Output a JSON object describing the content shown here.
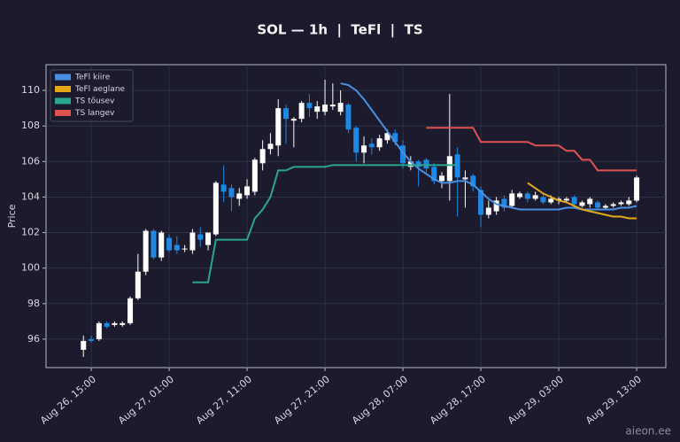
{
  "chart_data": {
    "type": "candlestick",
    "title": "SOL — 1h  |  TeFl  |  TS",
    "ylabel": "Price",
    "watermark": "aieon.ee",
    "categories": [
      null,
      "Aug 26, 15:00",
      null,
      null,
      null,
      null,
      null,
      null,
      null,
      null,
      null,
      "Aug 27, 01:00",
      null,
      null,
      null,
      null,
      null,
      null,
      null,
      null,
      null,
      "Aug 27, 11:00",
      null,
      null,
      null,
      null,
      null,
      null,
      null,
      null,
      null,
      "Aug 27, 21:00",
      null,
      null,
      null,
      null,
      null,
      null,
      null,
      null,
      null,
      "Aug 28, 07:00",
      null,
      null,
      null,
      null,
      null,
      null,
      null,
      null,
      null,
      "Aug 28, 17:00",
      null,
      null,
      null,
      null,
      null,
      null,
      null,
      null,
      null,
      "Aug 29, 03:00",
      null,
      null,
      null,
      null,
      null,
      null,
      null,
      null,
      null,
      "Aug 29, 13:00"
    ],
    "open": [
      95.4,
      96.0,
      96.0,
      96.9,
      96.8,
      96.8,
      96.9,
      98.3,
      99.8,
      102.1,
      100.6,
      101.7,
      101.3,
      101.1,
      101.0,
      101.9,
      101.3,
      101.9,
      104.7,
      104.5,
      103.9,
      104.1,
      104.3,
      105.9,
      106.7,
      106.9,
      109.0,
      108.3,
      108.4,
      109.3,
      108.8,
      108.8,
      109.1,
      108.8,
      109.2,
      107.9,
      106.5,
      107.0,
      106.8,
      107.2,
      107.6,
      106.9,
      105.7,
      106.0,
      106.1,
      105.7,
      104.9,
      104.9,
      106.4,
      105.0,
      105.2,
      104.4,
      103.0,
      103.2,
      103.9,
      103.5,
      104.0,
      104.2,
      103.9,
      104.0,
      103.7,
      103.8,
      103.8,
      104.0,
      103.5,
      103.6,
      103.7,
      103.4,
      103.5,
      103.6,
      103.6,
      103.8
    ],
    "high": [
      96.2,
      96.2,
      97.0,
      97.0,
      97.0,
      97.0,
      98.4,
      100.8,
      102.2,
      102.2,
      102.1,
      101.9,
      101.8,
      101.3,
      102.2,
      102.3,
      102.0,
      104.9,
      105.8,
      104.7,
      104.5,
      105.0,
      106.2,
      107.2,
      107.6,
      109.5,
      109.2,
      108.5,
      109.4,
      109.8,
      109.4,
      110.6,
      110.4,
      110.0,
      109.3,
      108.0,
      107.4,
      107.3,
      107.5,
      107.8,
      107.8,
      107.2,
      106.3,
      106.1,
      106.2,
      105.9,
      105.4,
      109.8,
      106.8,
      105.5,
      105.3,
      104.6,
      103.8,
      104.0,
      104.1,
      104.4,
      104.3,
      104.3,
      104.3,
      104.2,
      104.1,
      104.0,
      104.0,
      104.1,
      103.8,
      104.0,
      103.8,
      103.6,
      103.7,
      103.8,
      104.0,
      105.2
    ],
    "low": [
      95.0,
      95.8,
      95.9,
      96.6,
      96.7,
      96.7,
      96.8,
      98.2,
      99.6,
      100.5,
      100.4,
      100.9,
      100.8,
      100.9,
      100.8,
      101.2,
      101.0,
      101.8,
      103.7,
      103.2,
      103.5,
      103.9,
      104.1,
      105.5,
      106.4,
      106.3,
      107.0,
      106.8,
      108.2,
      108.5,
      108.4,
      108.6,
      108.9,
      108.6,
      107.6,
      106.0,
      105.9,
      106.4,
      106.6,
      107.0,
      106.9,
      105.6,
      105.5,
      104.6,
      105.4,
      104.7,
      104.5,
      103.8,
      102.9,
      103.4,
      104.3,
      102.3,
      102.8,
      103.0,
      103.2,
      103.4,
      103.9,
      103.7,
      103.8,
      103.6,
      103.6,
      103.6,
      103.7,
      103.5,
      103.4,
      103.4,
      103.3,
      103.3,
      103.4,
      103.5,
      103.5,
      103.7
    ],
    "close": [
      95.9,
      95.9,
      96.9,
      96.7,
      96.9,
      96.9,
      98.3,
      99.8,
      102.1,
      100.6,
      102.0,
      101.0,
      101.0,
      101.1,
      102.0,
      101.6,
      102.0,
      104.8,
      104.3,
      104.0,
      104.2,
      104.6,
      106.1,
      106.7,
      107.0,
      109.0,
      108.4,
      108.4,
      109.3,
      109.0,
      109.1,
      109.2,
      109.2,
      109.3,
      107.8,
      106.5,
      106.9,
      106.8,
      107.3,
      107.6,
      107.1,
      105.9,
      106.0,
      105.7,
      105.6,
      104.9,
      105.2,
      106.3,
      105.1,
      105.1,
      104.6,
      103.0,
      103.4,
      103.8,
      103.4,
      104.2,
      104.2,
      103.9,
      104.1,
      103.7,
      103.9,
      103.9,
      103.9,
      103.6,
      103.7,
      103.9,
      103.4,
      103.5,
      103.6,
      103.7,
      103.8,
      105.1
    ],
    "up_color": "#ffffff",
    "down_color": "#1e88e5",
    "series": [
      {
        "name": "TeFl kiire",
        "color": "#4a90e2",
        "values": [
          null,
          null,
          null,
          null,
          null,
          null,
          null,
          null,
          null,
          null,
          null,
          null,
          null,
          null,
          null,
          null,
          null,
          null,
          null,
          null,
          null,
          null,
          null,
          null,
          null,
          null,
          null,
          null,
          null,
          null,
          null,
          null,
          null,
          110.4,
          110.3,
          110.0,
          109.5,
          108.9,
          108.3,
          107.7,
          107.1,
          106.5,
          106.0,
          105.6,
          105.3,
          105.0,
          104.8,
          104.8,
          104.9,
          104.9,
          104.7,
          104.3,
          103.9,
          103.6,
          103.5,
          103.4,
          103.3,
          103.3,
          103.3,
          103.3,
          103.3,
          103.3,
          103.4,
          103.4,
          103.3,
          103.3,
          103.3,
          103.3,
          103.3,
          103.4,
          103.4,
          103.5
        ]
      },
      {
        "name": "TeFl aeglane",
        "color": "#e6a817",
        "values": [
          null,
          null,
          null,
          null,
          null,
          null,
          null,
          null,
          null,
          null,
          null,
          null,
          null,
          null,
          null,
          null,
          null,
          null,
          null,
          null,
          null,
          null,
          null,
          null,
          null,
          null,
          null,
          null,
          null,
          null,
          null,
          null,
          null,
          null,
          null,
          null,
          null,
          null,
          null,
          null,
          null,
          null,
          null,
          null,
          null,
          null,
          null,
          null,
          null,
          null,
          null,
          null,
          null,
          null,
          null,
          null,
          null,
          104.8,
          104.5,
          104.2,
          104.0,
          103.8,
          103.7,
          103.5,
          103.3,
          103.2,
          103.1,
          103.0,
          102.9,
          102.9,
          102.8,
          102.8
        ]
      },
      {
        "name": "TS tõusev",
        "color": "#2aa58e",
        "values": [
          null,
          null,
          null,
          null,
          null,
          null,
          null,
          null,
          null,
          null,
          null,
          null,
          null,
          null,
          99.2,
          99.2,
          99.2,
          101.6,
          101.6,
          101.6,
          101.6,
          101.6,
          102.8,
          103.3,
          104.0,
          105.5,
          105.5,
          105.7,
          105.7,
          105.7,
          105.7,
          105.7,
          105.8,
          105.8,
          105.8,
          105.8,
          105.8,
          105.8,
          105.8,
          105.8,
          105.8,
          105.8,
          105.8,
          105.8,
          105.8,
          105.8,
          105.8,
          105.8,
          105.8,
          null,
          null,
          null,
          null,
          null,
          null,
          null,
          null,
          null,
          null,
          null,
          null,
          null,
          null,
          null,
          null,
          null,
          null,
          null,
          null,
          null,
          null,
          null
        ]
      },
      {
        "name": "TS langev",
        "color": "#e05252",
        "values": [
          null,
          null,
          null,
          null,
          null,
          null,
          null,
          null,
          null,
          null,
          null,
          null,
          null,
          null,
          null,
          null,
          null,
          null,
          null,
          null,
          null,
          null,
          null,
          null,
          null,
          null,
          null,
          null,
          null,
          null,
          null,
          null,
          null,
          null,
          null,
          null,
          null,
          null,
          null,
          null,
          null,
          null,
          null,
          null,
          107.9,
          107.9,
          107.9,
          107.9,
          107.9,
          107.9,
          107.9,
          107.1,
          107.1,
          107.1,
          107.1,
          107.1,
          107.1,
          107.1,
          106.9,
          106.9,
          106.9,
          106.9,
          106.6,
          106.6,
          106.1,
          106.1,
          105.5,
          105.5,
          105.5,
          105.5,
          105.5,
          105.5
        ]
      }
    ],
    "ylim": [
      94.4,
      111.45
    ],
    "yticks": [
      96,
      98,
      100,
      102,
      104,
      106,
      108,
      110
    ],
    "grid": true,
    "legend": "upper left"
  }
}
